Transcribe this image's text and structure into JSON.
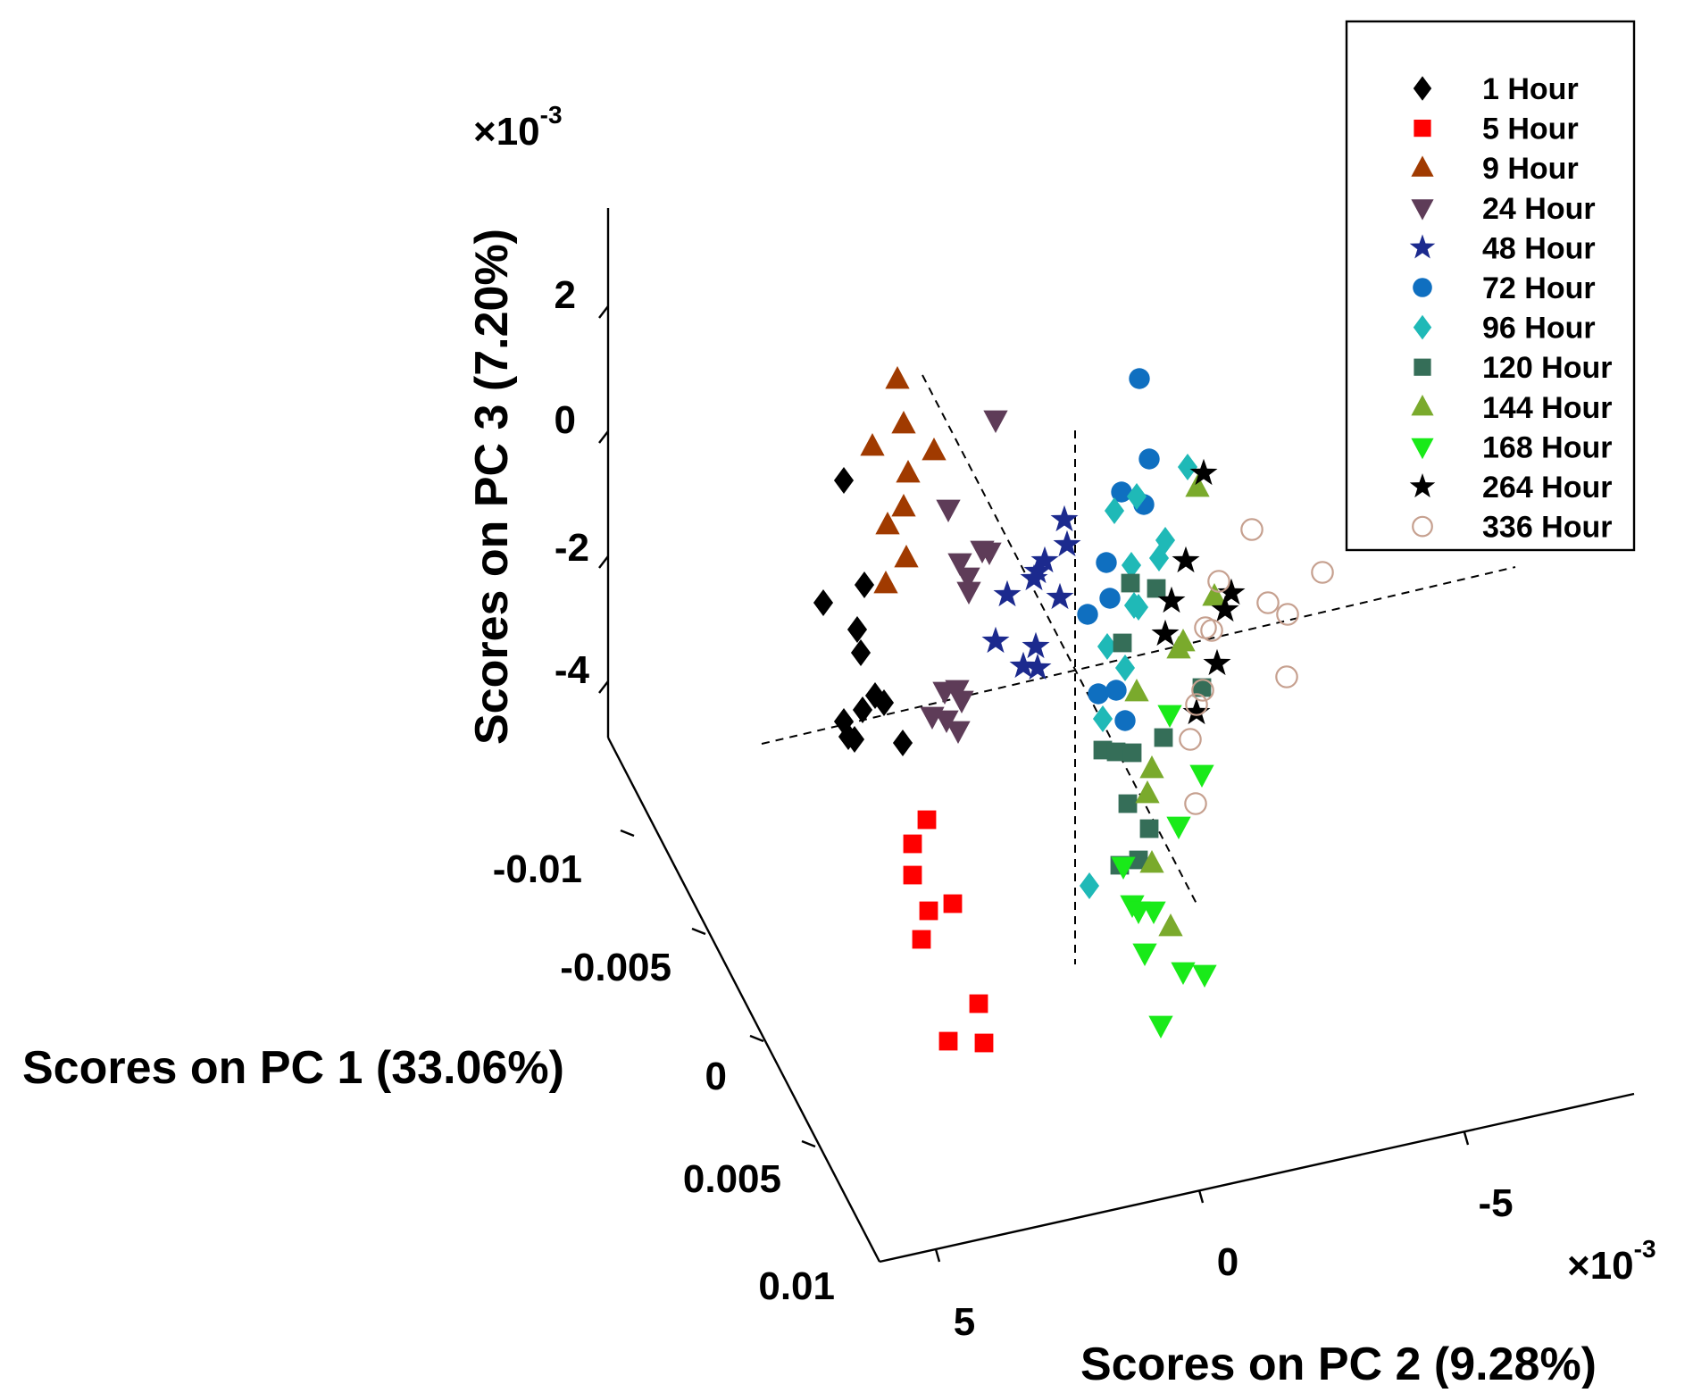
{
  "chart_data": {
    "type": "scatter3d",
    "title": "",
    "axes": {
      "pc1": {
        "label": "Scores on PC 1 (33.06%)",
        "ticks": [
          "-0.01",
          "-0.005",
          "0",
          "0.005",
          "0.01"
        ]
      },
      "pc2": {
        "label": "Scores on PC 2 (9.28%)",
        "ticks": [
          "5",
          "0",
          "-5"
        ],
        "exponent_base": "×10",
        "exponent": "-3"
      },
      "pc3": {
        "label": "Scores on PC 3 (7.20%)",
        "ticks": [
          "2",
          "0",
          "-2",
          "-4"
        ],
        "exponent_base": "×10",
        "exponent": "-3"
      }
    },
    "legend_position": "top-right",
    "series": [
      {
        "name": "1 Hour",
        "marker": "diamond",
        "color": "#000000",
        "filled": true,
        "points": [
          [
            945,
            538
          ],
          [
            922,
            675
          ],
          [
            968,
            655
          ],
          [
            960,
            705
          ],
          [
            964,
            731
          ],
          [
            980,
            779
          ],
          [
            990,
            787
          ],
          [
            945,
            808
          ],
          [
            950,
            825
          ],
          [
            966,
            795
          ],
          [
            957,
            828
          ],
          [
            1011,
            832
          ]
        ]
      },
      {
        "name": "5 Hour",
        "marker": "square",
        "color": "#ff0000",
        "filled": true,
        "points": [
          [
            1038,
            918
          ],
          [
            1022,
            945
          ],
          [
            1022,
            980
          ],
          [
            1040,
            1020
          ],
          [
            1067,
            1012
          ],
          [
            1032,
            1052
          ],
          [
            1096,
            1124
          ],
          [
            1062,
            1166
          ],
          [
            1102,
            1168
          ]
        ]
      },
      {
        "name": "9 Hour",
        "marker": "triangle-up",
        "color": "#a03a00",
        "filled": true,
        "points": [
          [
            1005,
            425
          ],
          [
            1012,
            475
          ],
          [
            977,
            500
          ],
          [
            1046,
            505
          ],
          [
            1017,
            530
          ],
          [
            1012,
            568
          ],
          [
            994,
            588
          ],
          [
            1015,
            625
          ],
          [
            992,
            654
          ]
        ]
      },
      {
        "name": "24 Hour",
        "marker": "triangle-down",
        "color": "#5e3c58",
        "filled": true,
        "points": [
          [
            1115,
            470
          ],
          [
            1062,
            570
          ],
          [
            1075,
            630
          ],
          [
            1100,
            616
          ],
          [
            1108,
            618
          ],
          [
            1084,
            646
          ],
          [
            1085,
            662
          ],
          [
            1058,
            774
          ],
          [
            1072,
            772
          ],
          [
            1044,
            802
          ],
          [
            1060,
            806
          ],
          [
            1073,
            818
          ],
          [
            1077,
            784
          ]
        ]
      },
      {
        "name": "48 Hour",
        "marker": "star",
        "color": "#1c2a8e",
        "filled": true,
        "points": [
          [
            1192,
            582
          ],
          [
            1195,
            610
          ],
          [
            1170,
            628
          ],
          [
            1162,
            640
          ],
          [
            1158,
            648
          ],
          [
            1128,
            666
          ],
          [
            1187,
            669
          ],
          [
            1115,
            718
          ],
          [
            1160,
            724
          ],
          [
            1146,
            746
          ],
          [
            1162,
            748
          ]
        ]
      },
      {
        "name": "72 Hour",
        "marker": "circle",
        "color": "#0f6fc0",
        "filled": true,
        "points": [
          [
            1276,
            424
          ],
          [
            1287,
            514
          ],
          [
            1256,
            551
          ],
          [
            1281,
            565
          ],
          [
            1239,
            630
          ],
          [
            1243,
            670
          ],
          [
            1218,
            688
          ],
          [
            1230,
            777
          ],
          [
            1250,
            773
          ],
          [
            1260,
            807
          ]
        ]
      },
      {
        "name": "96 Hour",
        "marker": "diamond",
        "color": "#1fb9b7",
        "filled": true,
        "points": [
          [
            1330,
            523
          ],
          [
            1248,
            572
          ],
          [
            1273,
            556
          ],
          [
            1305,
            605
          ],
          [
            1298,
            625
          ],
          [
            1267,
            633
          ],
          [
            1275,
            680
          ],
          [
            1270,
            678
          ],
          [
            1240,
            724
          ],
          [
            1260,
            748
          ],
          [
            1235,
            805
          ],
          [
            1220,
            992
          ]
        ]
      },
      {
        "name": "120 Hour",
        "marker": "square",
        "color": "#356e58",
        "filled": true,
        "points": [
          [
            1266,
            653
          ],
          [
            1295,
            659
          ],
          [
            1257,
            720
          ],
          [
            1235,
            840
          ],
          [
            1250,
            842
          ],
          [
            1268,
            843
          ],
          [
            1303,
            826
          ],
          [
            1346,
            770
          ],
          [
            1263,
            900
          ],
          [
            1287,
            928
          ],
          [
            1275,
            963
          ],
          [
            1254,
            969
          ]
        ]
      },
      {
        "name": "144 Hour",
        "marker": "triangle-up",
        "color": "#7aaa2c",
        "filled": true,
        "points": [
          [
            1341,
            546
          ],
          [
            1360,
            668
          ],
          [
            1320,
            727
          ],
          [
            1273,
            775
          ],
          [
            1290,
            861
          ],
          [
            1285,
            889
          ],
          [
            1290,
            967
          ],
          [
            1311,
            1038
          ],
          [
            1325,
            719
          ]
        ]
      },
      {
        "name": "168 Hour",
        "marker": "triangle-down",
        "color": "#19ea19",
        "filled": true,
        "points": [
          [
            1310,
            800
          ],
          [
            1346,
            867
          ],
          [
            1320,
            925
          ],
          [
            1258,
            970
          ],
          [
            1268,
            1013
          ],
          [
            1275,
            1020
          ],
          [
            1292,
            1020
          ],
          [
            1282,
            1067
          ],
          [
            1325,
            1088
          ],
          [
            1349,
            1091
          ],
          [
            1300,
            1148
          ]
        ]
      },
      {
        "name": "264 Hour",
        "marker": "star",
        "color": "#000000",
        "filled": true,
        "points": [
          [
            1348,
            530
          ],
          [
            1328,
            628
          ],
          [
            1312,
            673
          ],
          [
            1379,
            664
          ],
          [
            1372,
            683
          ],
          [
            1305,
            710
          ],
          [
            1363,
            743
          ],
          [
            1340,
            798
          ]
        ]
      },
      {
        "name": "336 Hour",
        "marker": "circle",
        "color": "#c6a08f",
        "filled": false,
        "points": [
          [
            1402,
            593
          ],
          [
            1481,
            641
          ],
          [
            1365,
            651
          ],
          [
            1420,
            675
          ],
          [
            1442,
            688
          ],
          [
            1350,
            703
          ],
          [
            1357,
            706
          ],
          [
            1347,
            773
          ],
          [
            1340,
            789
          ],
          [
            1333,
            828
          ],
          [
            1339,
            900
          ],
          [
            1441,
            758
          ]
        ]
      }
    ],
    "annotations": [
      "dashed boundary lines separating time-point clusters"
    ]
  }
}
